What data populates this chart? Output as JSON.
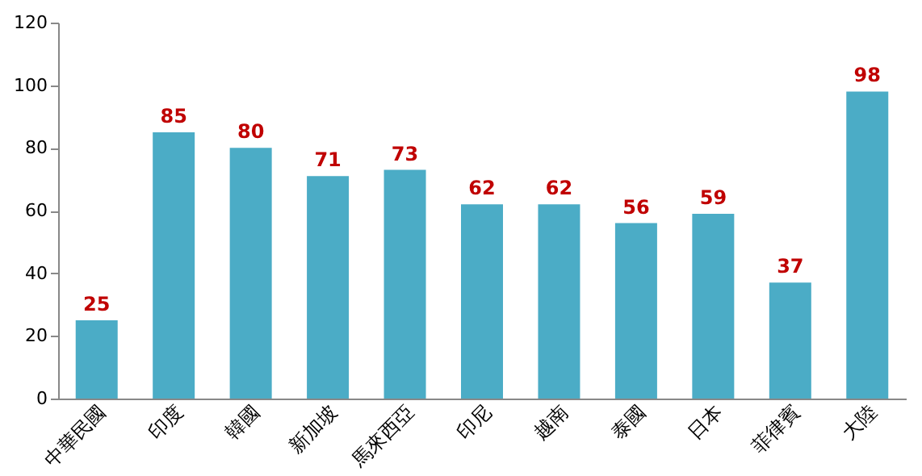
{
  "chart_data": {
    "type": "bar",
    "categories": [
      "中華民國",
      "印度",
      "韓國",
      "新加坡",
      "馬來西亞",
      "印尼",
      "越南",
      "泰國",
      "日本",
      "菲律賓",
      "大陸"
    ],
    "values": [
      25,
      85,
      80,
      71,
      73,
      62,
      62,
      56,
      59,
      37,
      98
    ],
    "color": "#4bacc6",
    "ylim": [
      0,
      120
    ],
    "yticks": [
      0,
      20,
      40,
      60,
      80,
      100,
      120
    ],
    "grid": false,
    "data_labels": true
  }
}
